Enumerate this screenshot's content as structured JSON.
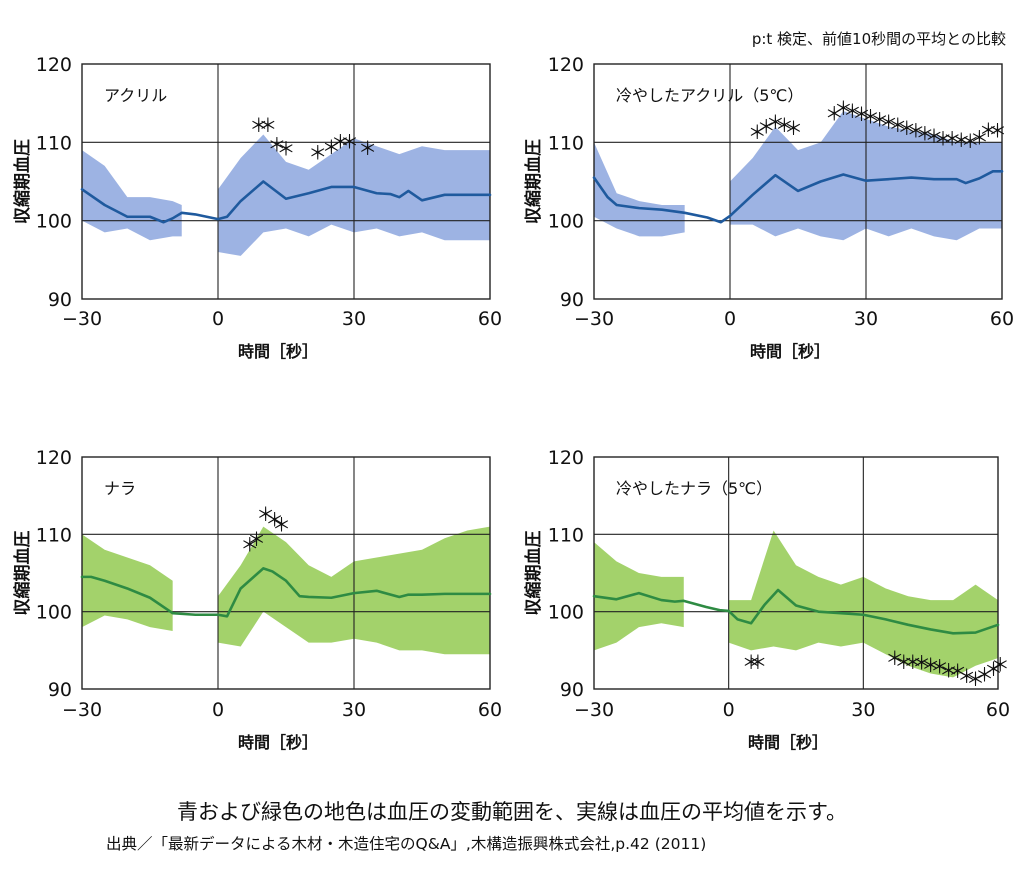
{
  "header_note": "p:t 検定、前値10秒間の平均との比較",
  "caption": "青および緑色の地色は血圧の変動範囲を、実線は血圧の平均値を示す。",
  "source": "出典／「最新データによる木材・木造住宅のQ&A」,木構造振興株式会社,p.42 (2011)",
  "colors": {
    "blue_band": "#9db3e3",
    "blue_line": "#1f5a9e",
    "green_band": "#a3d26b",
    "green_line": "#2e8b43"
  },
  "chart_data": [
    {
      "type": "line",
      "title": "アクリル",
      "xlabel": "時間［秒］",
      "ylabel": "収縮期血圧",
      "xlim": [
        -30,
        60
      ],
      "ylim": [
        90,
        120
      ],
      "xticks": [
        -30,
        0,
        30,
        60
      ],
      "yticks": [
        90,
        100,
        110,
        120
      ],
      "grid": true,
      "color_key": "blue",
      "marker": "＊",
      "series": [
        {
          "kind": "range_pre",
          "x": [
            -30,
            -25,
            -20,
            -15,
            -10,
            -8
          ],
          "upper": [
            109,
            107,
            103,
            103,
            102.5,
            102
          ],
          "lower": [
            100,
            98.5,
            99,
            97.5,
            98,
            98
          ]
        },
        {
          "kind": "range_post",
          "x": [
            0,
            5,
            10,
            15,
            20,
            25,
            30,
            35,
            40,
            45,
            50,
            55,
            60
          ],
          "upper": [
            104,
            108,
            111,
            107.5,
            106.5,
            108.5,
            110.5,
            109.5,
            108.5,
            109.5,
            109,
            109,
            109
          ],
          "lower": [
            96,
            95.5,
            98.5,
            99,
            98,
            99.5,
            98.5,
            99,
            98,
            98.5,
            97.5,
            97.5,
            97.5
          ]
        },
        {
          "kind": "mean",
          "x": [
            -30,
            -25,
            -20,
            -15,
            -12,
            -10,
            -8,
            -5,
            0,
            2,
            5,
            10,
            15,
            20,
            25,
            30,
            35,
            38,
            40,
            42,
            45,
            50,
            55,
            60
          ],
          "y": [
            104,
            102,
            100.5,
            100.5,
            99.8,
            100.3,
            101,
            100.8,
            100.2,
            100.5,
            102.5,
            105,
            102.8,
            103.5,
            104.3,
            104.3,
            103.5,
            103.4,
            103,
            103.8,
            102.6,
            103.3,
            103.3,
            103.3
          ]
        },
        {
          "kind": "significance",
          "points": [
            [
              9,
              112.2
            ],
            [
              11,
              112.2
            ],
            [
              13,
              109.7
            ],
            [
              15,
              109.2
            ],
            [
              22,
              108.7
            ],
            [
              25,
              109.4
            ],
            [
              27,
              110.1
            ],
            [
              29,
              110.1
            ],
            [
              33,
              109.3
            ]
          ]
        }
      ]
    },
    {
      "type": "line",
      "title": "冷やしたアクリル（5℃）",
      "xlabel": "時間［秒］",
      "ylabel": "収縮期血圧",
      "xlim": [
        -30,
        60
      ],
      "ylim": [
        90,
        120
      ],
      "xticks": [
        -30,
        0,
        30,
        60
      ],
      "yticks": [
        90,
        100,
        110,
        120
      ],
      "grid": true,
      "color_key": "blue",
      "marker": "＊",
      "series": [
        {
          "kind": "range_pre",
          "x": [
            -30,
            -25,
            -20,
            -15,
            -10
          ],
          "upper": [
            110,
            103.5,
            102.5,
            102,
            102
          ],
          "lower": [
            100.5,
            99,
            98,
            98,
            98.5
          ]
        },
        {
          "kind": "range_post",
          "x": [
            0,
            5,
            10,
            15,
            20,
            25,
            30,
            35,
            40,
            45,
            50,
            55,
            60
          ],
          "upper": [
            105,
            108,
            112,
            109,
            110,
            114,
            113,
            112,
            111.5,
            111,
            110,
            110,
            110
          ],
          "lower": [
            99.5,
            99.5,
            98,
            99,
            98,
            97.5,
            99,
            98,
            99,
            98,
            97.5,
            99,
            99
          ]
        },
        {
          "kind": "mean",
          "x": [
            -30,
            -27,
            -25,
            -20,
            -15,
            -10,
            -5,
            -2,
            0,
            5,
            10,
            15,
            20,
            25,
            30,
            35,
            40,
            45,
            50,
            52,
            55,
            58,
            60
          ],
          "y": [
            105.5,
            103,
            102,
            101.6,
            101.4,
            101,
            100.4,
            99.8,
            100.6,
            103.3,
            105.8,
            103.8,
            105,
            105.9,
            105.1,
            105.3,
            105.5,
            105.3,
            105.3,
            104.8,
            105.4,
            106.3,
            106.3
          ]
        },
        {
          "kind": "significance",
          "points": [
            [
              6,
              111.3
            ],
            [
              8,
              112
            ],
            [
              10,
              112.6
            ],
            [
              12,
              112.2
            ],
            [
              14,
              111.8
            ],
            [
              23,
              113.7
            ],
            [
              25,
              114.4
            ],
            [
              27,
              114
            ],
            [
              29,
              113.6
            ],
            [
              31,
              113.3
            ],
            [
              33,
              112.9
            ],
            [
              35,
              112.6
            ],
            [
              37,
              112.2
            ],
            [
              39,
              111.8
            ],
            [
              41,
              111.5
            ],
            [
              43,
              111.1
            ],
            [
              45,
              110.8
            ],
            [
              47,
              110.5
            ],
            [
              49,
              110.5
            ],
            [
              51,
              110.3
            ],
            [
              53,
              110.2
            ],
            [
              55,
              110.6
            ],
            [
              57,
              111.6
            ],
            [
              59,
              111.5
            ]
          ]
        }
      ]
    },
    {
      "type": "line",
      "title": "ナラ",
      "xlabel": "時間［秒］",
      "ylabel": "収縮期血圧",
      "xlim": [
        -30,
        60
      ],
      "ylim": [
        90,
        120
      ],
      "xticks": [
        -30,
        0,
        30,
        60
      ],
      "yticks": [
        90,
        100,
        110,
        120
      ],
      "grid": true,
      "color_key": "green",
      "marker": "＊",
      "series": [
        {
          "kind": "range_pre",
          "x": [
            -30,
            -25,
            -20,
            -15,
            -10
          ],
          "upper": [
            110,
            108,
            107,
            106,
            104
          ],
          "lower": [
            98,
            99.5,
            99,
            98,
            97.5
          ]
        },
        {
          "kind": "range_post",
          "x": [
            0,
            5,
            10,
            15,
            20,
            25,
            30,
            35,
            40,
            45,
            50,
            55,
            60
          ],
          "upper": [
            102,
            106,
            111,
            109,
            106,
            104.5,
            106.5,
            107,
            107.5,
            108,
            109.5,
            110.5,
            111
          ],
          "lower": [
            96,
            95.5,
            100,
            98,
            96,
            96,
            96.5,
            96,
            95,
            95,
            94.5,
            94.5,
            94.5
          ]
        },
        {
          "kind": "mean",
          "x": [
            -30,
            -28,
            -25,
            -20,
            -15,
            -10,
            -5,
            0,
            2,
            5,
            10,
            12,
            15,
            18,
            20,
            25,
            30,
            35,
            40,
            42,
            45,
            50,
            55,
            60
          ],
          "y": [
            104.5,
            104.5,
            104,
            103,
            101.8,
            99.8,
            99.6,
            99.6,
            99.4,
            103,
            105.6,
            105.2,
            104,
            102,
            101.9,
            101.8,
            102.4,
            102.7,
            101.9,
            102.2,
            102.2,
            102.3,
            102.3,
            102.3
          ]
        },
        {
          "kind": "significance",
          "points": [
            [
              7,
              108.7
            ],
            [
              8.5,
              109.4
            ],
            [
              10.5,
              112.6
            ],
            [
              12.5,
              111.9
            ],
            [
              14,
              111.3
            ]
          ]
        }
      ]
    },
    {
      "type": "line",
      "title": "冷やしたナラ（5℃）",
      "xlabel": "時間［秒］",
      "ylabel": "収縮期血圧",
      "xlim": [
        -30,
        60
      ],
      "ylim": [
        90,
        120
      ],
      "xticks": [
        -30,
        0,
        30,
        60
      ],
      "yticks": [
        90,
        100,
        110,
        120
      ],
      "grid": true,
      "color_key": "green",
      "marker": "＊",
      "series": [
        {
          "kind": "range_pre",
          "x": [
            -30,
            -25,
            -20,
            -15,
            -10
          ],
          "upper": [
            109,
            106.5,
            105,
            104.5,
            104.5
          ],
          "lower": [
            95,
            96,
            98,
            98.5,
            98
          ]
        },
        {
          "kind": "range_post",
          "x": [
            0,
            5,
            10,
            15,
            20,
            25,
            30,
            35,
            40,
            45,
            50,
            55,
            60
          ],
          "upper": [
            101.5,
            101.5,
            110.5,
            106,
            104.5,
            103.5,
            104.5,
            103,
            102,
            101.5,
            101.5,
            103.5,
            101.5
          ],
          "lower": [
            96,
            95,
            95.5,
            95,
            96,
            95.5,
            96,
            94.5,
            93,
            92,
            91.5,
            93,
            94
          ]
        },
        {
          "kind": "mean",
          "x": [
            -30,
            -25,
            -20,
            -15,
            -12,
            -10,
            -5,
            -2,
            0,
            2,
            5,
            8,
            11,
            15,
            20,
            25,
            30,
            35,
            40,
            45,
            50,
            55,
            60
          ],
          "y": [
            102,
            101.6,
            102.4,
            101.5,
            101.3,
            101.4,
            100.6,
            100.2,
            100.1,
            99,
            98.5,
            100.9,
            102.8,
            100.8,
            100,
            99.8,
            99.6,
            99,
            98.3,
            97.7,
            97.2,
            97.3,
            98.3
          ]
        },
        {
          "kind": "significance",
          "points": [
            [
              5,
              93.5
            ],
            [
              6.5,
              93.5
            ],
            [
              37,
              94
            ],
            [
              39,
              93.5
            ],
            [
              41,
              93.5
            ],
            [
              43,
              93.4
            ],
            [
              45,
              93.1
            ],
            [
              47,
              92.9
            ],
            [
              49,
              92.4
            ],
            [
              51,
              92.3
            ],
            [
              53,
              91.7
            ],
            [
              55,
              91.3
            ],
            [
              57,
              91.9
            ],
            [
              59,
              92.6
            ],
            [
              60.5,
              93.2
            ]
          ]
        }
      ]
    }
  ]
}
